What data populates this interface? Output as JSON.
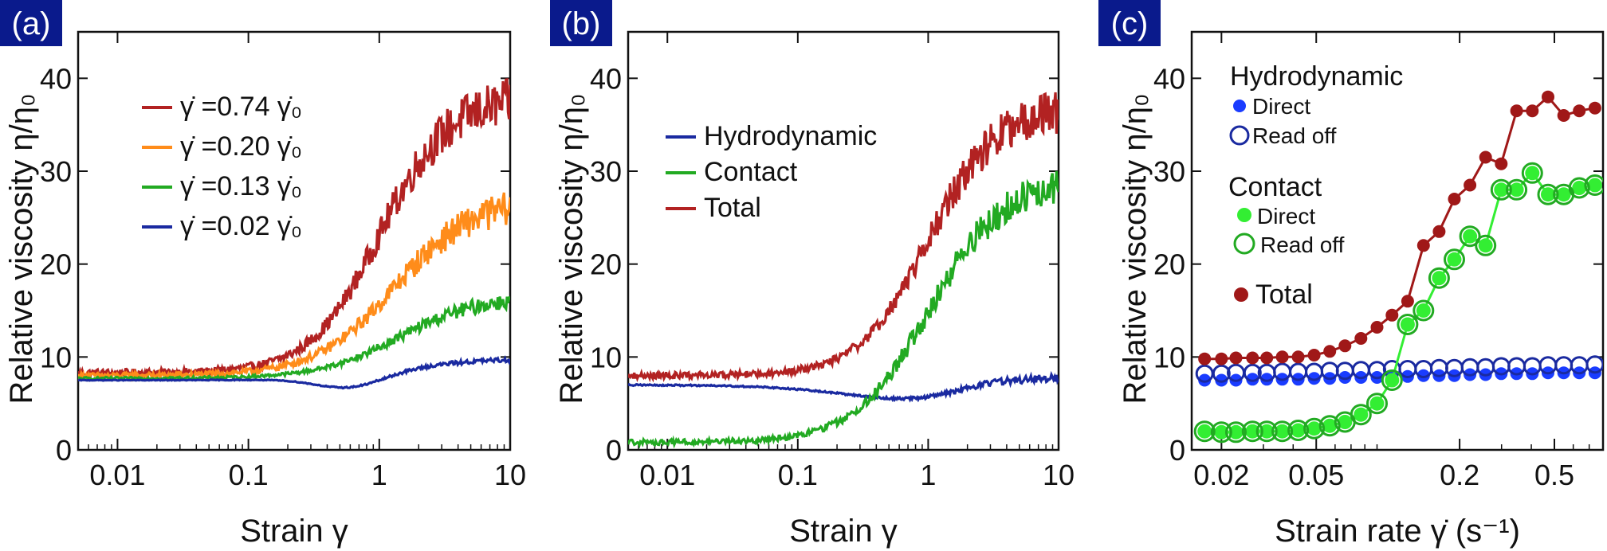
{
  "chart_data": [
    {
      "panel": "(a)",
      "type": "line",
      "xscale": "log",
      "xlim": [
        0.005,
        10
      ],
      "ylim": [
        0,
        45
      ],
      "xticks": [
        0.01,
        0.1,
        1,
        10
      ],
      "xtick_labels": [
        "0.01",
        "0.1",
        "1",
        "10"
      ],
      "yticks": [
        0,
        10,
        20,
        30,
        40
      ],
      "ytick_labels": [
        "0",
        "10",
        "20",
        "30",
        "40"
      ],
      "xlabel": "Strain γ",
      "ylabel": "Relative viscosity η/η₀",
      "legend": "top-left",
      "series": [
        {
          "name": "γ̇ =0.74 γ̇₀",
          "color": "#b22222",
          "start": 8.3,
          "end": 38,
          "mid": 1.0,
          "width": 0.26,
          "noise": 2.6
        },
        {
          "name": "γ̇ =0.20 γ̇₀",
          "color": "#ff8c1a",
          "start": 8.0,
          "end": 27,
          "mid": 1.3,
          "width": 0.3,
          "noise": 1.9
        },
        {
          "name": "γ̇ =0.13 γ̇₀",
          "color": "#22aa22",
          "start": 7.7,
          "end": 16.5,
          "mid": 1.4,
          "width": 0.3,
          "noise": 0.9
        },
        {
          "name": "γ̇ =0.02 γ̇₀",
          "color": "#1a2aa0",
          "start": 7.5,
          "end": 9.8,
          "mid": 1.5,
          "width": 0.28,
          "noise": 0.25,
          "dip": 1.2
        }
      ]
    },
    {
      "panel": "(b)",
      "type": "line",
      "xscale": "log",
      "xlim": [
        0.005,
        10
      ],
      "ylim": [
        0,
        45
      ],
      "xticks": [
        0.01,
        0.1,
        1,
        10
      ],
      "xtick_labels": [
        "0.01",
        "0.1",
        "1",
        "10"
      ],
      "yticks": [
        0,
        10,
        20,
        30,
        40
      ],
      "ytick_labels": [
        "0",
        "10",
        "20",
        "30",
        "40"
      ],
      "xlabel": "Strain γ",
      "ylabel": "Relative viscosity η/η₀",
      "legend": "top-left",
      "series": [
        {
          "name": "Hydrodynamic",
          "color": "#1a2aa0",
          "start": 7.0,
          "end": 7.5,
          "mid": 2.0,
          "width": 0.3,
          "noise": 0.5,
          "dip": 3.3
        },
        {
          "name": "Contact",
          "color": "#22aa22",
          "start": 0.8,
          "end": 29,
          "mid": 1.0,
          "width": 0.28,
          "noise": 2.0
        },
        {
          "name": "Total",
          "color": "#b22222",
          "start": 8.0,
          "end": 37,
          "mid": 1.0,
          "width": 0.26,
          "noise": 2.4
        }
      ]
    },
    {
      "panel": "(c)",
      "type": "scatter",
      "xscale": "log",
      "xlim": [
        0.015,
        0.8
      ],
      "ylim": [
        0,
        45
      ],
      "xticks": [
        0.02,
        0.05,
        0.2,
        0.5
      ],
      "xtick_labels": [
        "0.02",
        "0.05",
        "0.2",
        "0.5"
      ],
      "yticks": [
        0,
        10,
        20,
        30,
        40
      ],
      "ytick_labels": [
        "0",
        "10",
        "20",
        "30",
        "40"
      ],
      "xlabel": "Strain rate γ̇ (s⁻¹)",
      "ylabel": "Relative viscosity η/η₀",
      "legend": "top-left",
      "x": [
        0.017,
        0.02,
        0.023,
        0.027,
        0.031,
        0.036,
        0.042,
        0.049,
        0.057,
        0.066,
        0.077,
        0.09,
        0.104,
        0.121,
        0.141,
        0.164,
        0.19,
        0.221,
        0.257,
        0.299,
        0.347,
        0.404,
        0.47,
        0.547,
        0.636,
        0.74
      ],
      "series": [
        {
          "name": "Direct",
          "group": "Hydrodynamic",
          "color": "#1a3cff",
          "style": "filled",
          "values": [
            7.5,
            7.5,
            7.5,
            7.6,
            7.6,
            7.6,
            7.6,
            7.7,
            7.7,
            7.8,
            7.8,
            7.8,
            7.9,
            7.9,
            8.0,
            8.0,
            8.0,
            8.1,
            8.1,
            8.2,
            8.2,
            8.2,
            8.3,
            8.3,
            8.3,
            8.3
          ]
        },
        {
          "name": "Read off",
          "group": "Hydrodynamic",
          "color": "#1a2aa0",
          "style": "open",
          "values": [
            8.2,
            8.2,
            8.3,
            8.3,
            8.3,
            8.4,
            8.4,
            8.4,
            8.5,
            8.5,
            8.6,
            8.6,
            8.7,
            8.7,
            8.7,
            8.8,
            8.8,
            8.9,
            8.9,
            9.0,
            9.0,
            9.0,
            9.1,
            9.1,
            9.1,
            9.2
          ]
        },
        {
          "name": "Direct",
          "group": "Contact",
          "color": "#33ee33",
          "style": "filled",
          "line": true,
          "values": [
            2.0,
            1.9,
            1.9,
            2.0,
            2.0,
            2.0,
            2.1,
            2.3,
            2.6,
            3.0,
            3.8,
            5.0,
            7.5,
            13.5,
            15.0,
            18.5,
            20.5,
            23.0,
            22.0,
            28.0,
            28.0,
            29.8,
            27.5,
            27.5,
            28.2,
            28.5
          ]
        },
        {
          "name": "Read off",
          "group": "Contact",
          "color": "#22aa22",
          "style": "open",
          "values": [
            2.0,
            1.9,
            1.9,
            2.0,
            2.0,
            2.0,
            2.1,
            2.3,
            2.6,
            3.0,
            3.8,
            5.0,
            7.5,
            13.5,
            15.0,
            18.5,
            20.5,
            23.0,
            22.0,
            28.0,
            28.0,
            29.8,
            27.5,
            27.5,
            28.2,
            28.5
          ]
        },
        {
          "name": "Total",
          "color": "#a01818",
          "style": "filled",
          "line": true,
          "values": [
            9.8,
            9.8,
            9.9,
            9.9,
            9.9,
            10.0,
            10.0,
            10.2,
            10.6,
            11.2,
            12.0,
            13.2,
            14.5,
            16.0,
            22.0,
            23.5,
            27.0,
            28.5,
            31.5,
            30.8,
            36.5,
            36.5,
            38.0,
            36.0,
            36.5,
            36.8
          ]
        }
      ],
      "legend_groups": [
        "Hydrodynamic",
        "Contact"
      ]
    }
  ]
}
